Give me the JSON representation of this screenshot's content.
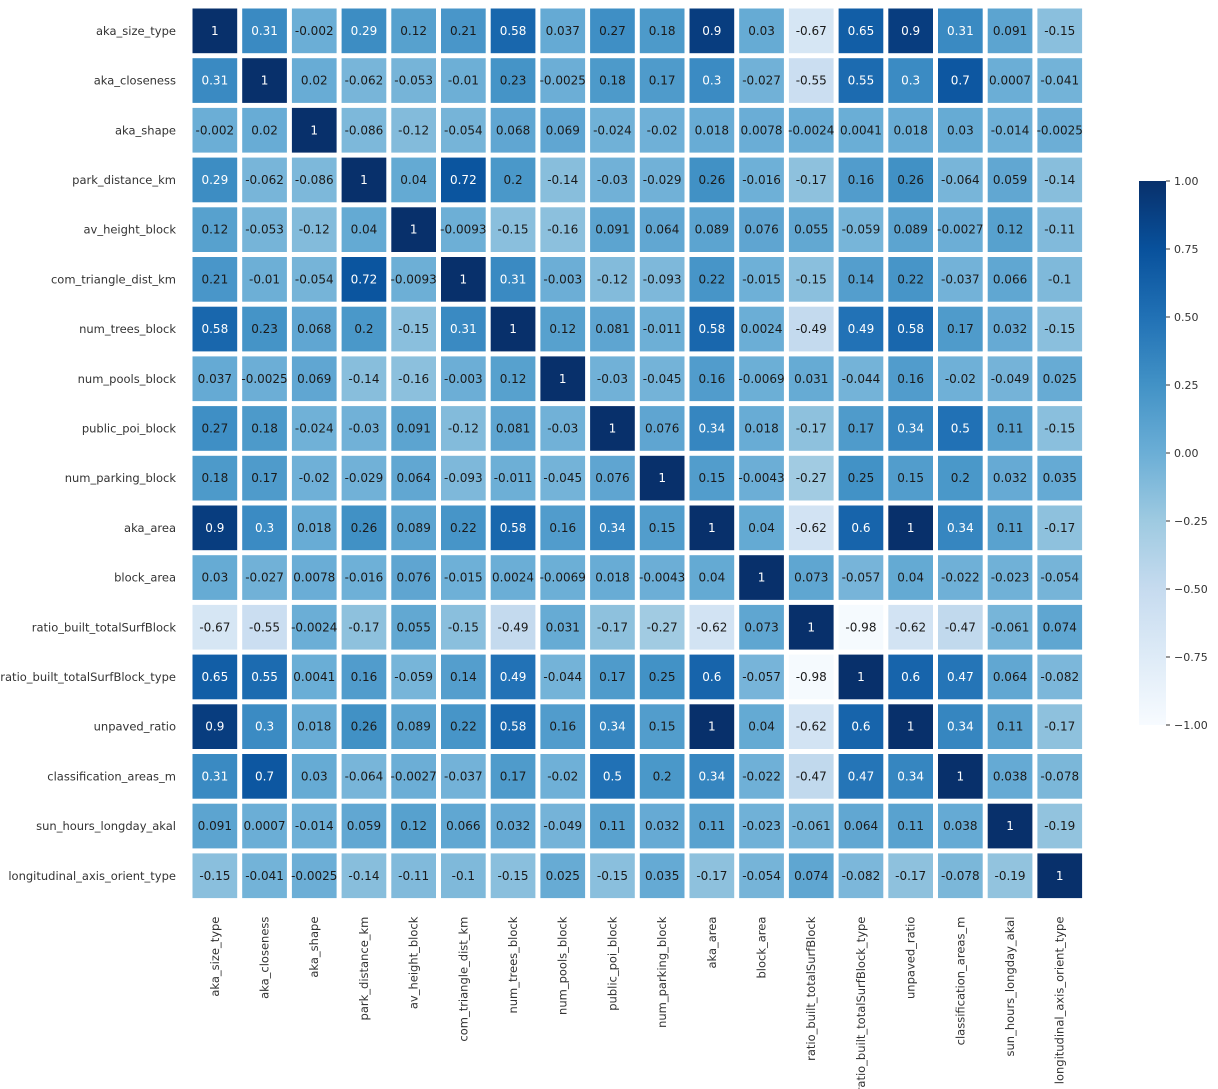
{
  "chart_data": {
    "type": "heatmap",
    "title": "",
    "xlabel": "",
    "ylabel": "",
    "colormap": "Blues",
    "vmin": -1,
    "vmax": 1,
    "grid": false,
    "legend": "colorbar-right",
    "labels": [
      "aka_size_type",
      "aka_closeness",
      "aka_shape",
      "park_distance_km",
      "av_height_block",
      "com_triangle_dist_km",
      "num_trees_block",
      "num_pools_block",
      "public_poi_block",
      "num_parking_block",
      "aka_area",
      "block_area",
      "ratio_built_totalSurfBlock",
      "ratio_built_totalSurfBlock_type",
      "unpaved_ratio",
      "classification_areas_m",
      "sun_hours_longday_akal",
      "longitudinal_axis_orient_type"
    ],
    "x_tick_labels": [
      "aka_size_type",
      "aka_closeness",
      "aka_shape",
      "park_distance_km",
      "av_height_block",
      "com_triangle_dist_km",
      "num_trees_block",
      "num_pools_block",
      "public_poi_block",
      "num_parking_block",
      "aka_area",
      "block_area",
      "ratio_built_totalSurfBlock",
      "ratio_built_totalSurfBlock_type",
      "unpaved_ratio",
      "classification_areas_m",
      "sun_hours_longday_akal",
      "longitudinal_axis_orient_type"
    ],
    "matrix_labels": [
      [
        "1",
        "0.31",
        "-0.002",
        "0.29",
        "0.12",
        "0.21",
        "0.58",
        "0.037",
        "0.27",
        "0.18",
        "0.9",
        "0.03",
        "-0.67",
        "0.65",
        "0.9",
        "0.31",
        "0.091",
        "-0.15"
      ],
      [
        "0.31",
        "1",
        "0.02",
        "-0.062",
        "-0.053",
        "-0.01",
        "0.23",
        "-0.0025",
        "0.18",
        "0.17",
        "0.3",
        "-0.027",
        "-0.55",
        "0.55",
        "0.3",
        "0.7",
        "0.0007",
        "-0.041"
      ],
      [
        "-0.002",
        "0.02",
        "1",
        "-0.086",
        "-0.12",
        "-0.054",
        "0.068",
        "0.069",
        "-0.024",
        "-0.02",
        "0.018",
        "0.0078",
        "-0.0024",
        "0.0041",
        "0.018",
        "0.03",
        "-0.014",
        "-0.0025"
      ],
      [
        "0.29",
        "-0.062",
        "-0.086",
        "1",
        "0.04",
        "0.72",
        "0.2",
        "-0.14",
        "-0.03",
        "-0.029",
        "0.26",
        "-0.016",
        "-0.17",
        "0.16",
        "0.26",
        "-0.064",
        "0.059",
        "-0.14"
      ],
      [
        "0.12",
        "-0.053",
        "-0.12",
        "0.04",
        "1",
        "-0.0093",
        "-0.15",
        "-0.16",
        "0.091",
        "0.064",
        "0.089",
        "0.076",
        "0.055",
        "-0.059",
        "0.089",
        "-0.0027",
        "0.12",
        "-0.11"
      ],
      [
        "0.21",
        "-0.01",
        "-0.054",
        "0.72",
        "-0.0093",
        "1",
        "0.31",
        "-0.003",
        "-0.12",
        "-0.093",
        "0.22",
        "-0.015",
        "-0.15",
        "0.14",
        "0.22",
        "-0.037",
        "0.066",
        "-0.1"
      ],
      [
        "0.58",
        "0.23",
        "0.068",
        "0.2",
        "-0.15",
        "0.31",
        "1",
        "0.12",
        "0.081",
        "-0.011",
        "0.58",
        "0.0024",
        "-0.49",
        "0.49",
        "0.58",
        "0.17",
        "0.032",
        "-0.15"
      ],
      [
        "0.037",
        "-0.0025",
        "0.069",
        "-0.14",
        "-0.16",
        "-0.003",
        "0.12",
        "1",
        "-0.03",
        "-0.045",
        "0.16",
        "-0.0069",
        "0.031",
        "-0.044",
        "0.16",
        "-0.02",
        "-0.049",
        "0.025"
      ],
      [
        "0.27",
        "0.18",
        "-0.024",
        "-0.03",
        "0.091",
        "-0.12",
        "0.081",
        "-0.03",
        "1",
        "0.076",
        "0.34",
        "0.018",
        "-0.17",
        "0.17",
        "0.34",
        "0.5",
        "0.11",
        "-0.15"
      ],
      [
        "0.18",
        "0.17",
        "-0.02",
        "-0.029",
        "0.064",
        "-0.093",
        "-0.011",
        "-0.045",
        "0.076",
        "1",
        "0.15",
        "-0.0043",
        "-0.27",
        "0.25",
        "0.15",
        "0.2",
        "0.032",
        "0.035"
      ],
      [
        "0.9",
        "0.3",
        "0.018",
        "0.26",
        "0.089",
        "0.22",
        "0.58",
        "0.16",
        "0.34",
        "0.15",
        "1",
        "0.04",
        "-0.62",
        "0.6",
        "1",
        "0.34",
        "0.11",
        "-0.17"
      ],
      [
        "0.03",
        "-0.027",
        "0.0078",
        "-0.016",
        "0.076",
        "-0.015",
        "0.0024",
        "-0.0069",
        "0.018",
        "-0.0043",
        "0.04",
        "1",
        "0.073",
        "-0.057",
        "0.04",
        "-0.022",
        "-0.023",
        "-0.054"
      ],
      [
        "-0.67",
        "-0.55",
        "-0.0024",
        "-0.17",
        "0.055",
        "-0.15",
        "-0.49",
        "0.031",
        "-0.17",
        "-0.27",
        "-0.62",
        "0.073",
        "1",
        "-0.98",
        "-0.62",
        "-0.47",
        "-0.061",
        "0.074"
      ],
      [
        "0.65",
        "0.55",
        "0.0041",
        "0.16",
        "-0.059",
        "0.14",
        "0.49",
        "-0.044",
        "0.17",
        "0.25",
        "0.6",
        "-0.057",
        "-0.98",
        "1",
        "0.6",
        "0.47",
        "0.064",
        "-0.082"
      ],
      [
        "0.9",
        "0.3",
        "0.018",
        "0.26",
        "0.089",
        "0.22",
        "0.58",
        "0.16",
        "0.34",
        "0.15",
        "1",
        "0.04",
        "-0.62",
        "0.6",
        "1",
        "0.34",
        "0.11",
        "-0.17"
      ],
      [
        "0.31",
        "0.7",
        "0.03",
        "-0.064",
        "-0.0027",
        "-0.037",
        "0.17",
        "-0.02",
        "0.5",
        "0.2",
        "0.34",
        "-0.022",
        "-0.47",
        "0.47",
        "0.34",
        "1",
        "0.038",
        "-0.078"
      ],
      [
        "0.091",
        "0.0007",
        "-0.014",
        "0.059",
        "0.12",
        "0.066",
        "0.032",
        "-0.049",
        "0.11",
        "0.032",
        "0.11",
        "-0.023",
        "-0.061",
        "0.064",
        "0.11",
        "0.038",
        "1",
        "-0.19"
      ],
      [
        "-0.15",
        "-0.041",
        "-0.0025",
        "-0.14",
        "-0.11",
        "-0.1",
        "-0.15",
        "0.025",
        "-0.15",
        "0.035",
        "-0.17",
        "-0.054",
        "0.074",
        "-0.082",
        "-0.17",
        "-0.078",
        "-0.19",
        "1"
      ]
    ],
    "colorbar": {
      "ticks": [
        -1.0,
        -0.75,
        -0.5,
        -0.25,
        0.0,
        0.25,
        0.5,
        0.75,
        1.0
      ],
      "tick_labels": [
        "−1.00",
        "−0.75",
        "−0.50",
        "−0.25",
        "0.00",
        "0.25",
        "0.50",
        "0.75",
        "1.00"
      ]
    }
  }
}
